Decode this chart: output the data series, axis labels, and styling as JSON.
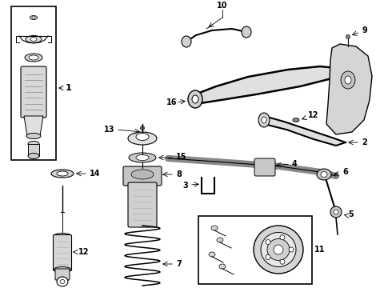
{
  "bg": "#ffffff",
  "lc": "#000000",
  "fig_w": 4.9,
  "fig_h": 3.6,
  "dpi": 100
}
